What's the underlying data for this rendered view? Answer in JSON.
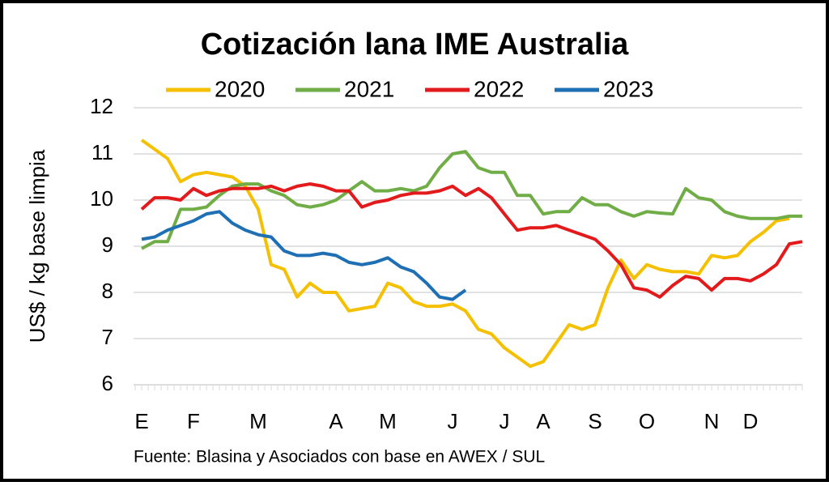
{
  "chart_data": {
    "type": "line",
    "title": "Cotización lana IME Australia",
    "y_label": "US$ / kg base limpia",
    "source": "Fuente: Blasina y Asociados con base en AWEX / SUL",
    "categories": [
      "E",
      null,
      null,
      null,
      "F",
      null,
      null,
      null,
      null,
      "M",
      null,
      null,
      null,
      null,
      null,
      "A",
      null,
      null,
      null,
      "M",
      null,
      null,
      null,
      null,
      "J",
      null,
      null,
      null,
      "J",
      null,
      null,
      "A",
      null,
      null,
      null,
      "S",
      null,
      null,
      null,
      "O",
      null,
      null,
      null,
      null,
      "N",
      null,
      null,
      "D",
      null,
      null,
      null,
      null
    ],
    "series": [
      {
        "name": "2020",
        "color": "#f5c000",
        "values": [
          11.3,
          11.1,
          10.9,
          10.4,
          10.55,
          10.6,
          10.55,
          10.5,
          10.3,
          9.8,
          8.6,
          8.5,
          7.9,
          8.2,
          8.0,
          8.0,
          7.6,
          7.65,
          7.7,
          8.2,
          8.1,
          7.8,
          7.7,
          7.7,
          7.75,
          7.6,
          7.2,
          7.1,
          6.8,
          6.6,
          6.4,
          6.5,
          6.9,
          7.3,
          7.2,
          7.3,
          8.1,
          8.7,
          8.3,
          8.6,
          8.5,
          8.45,
          8.45,
          8.4,
          8.8,
          8.75,
          8.8,
          9.1,
          9.3,
          9.55,
          9.6,
          null
        ]
      },
      {
        "name": "2021",
        "color": "#70ad47",
        "values": [
          8.95,
          9.1,
          9.1,
          9.8,
          9.8,
          9.85,
          10.1,
          10.3,
          10.35,
          10.35,
          10.2,
          10.1,
          9.9,
          9.85,
          9.9,
          10.0,
          10.2,
          10.4,
          10.2,
          10.2,
          10.25,
          10.2,
          10.3,
          10.7,
          11.0,
          11.05,
          10.7,
          10.6,
          10.6,
          10.1,
          10.1,
          9.7,
          9.75,
          9.75,
          10.05,
          9.9,
          9.9,
          9.75,
          9.65,
          9.75,
          9.72,
          9.7,
          10.25,
          10.05,
          10.0,
          9.75,
          9.65,
          9.6,
          9.6,
          9.6,
          9.65,
          9.65
        ]
      },
      {
        "name": "2022",
        "color": "#e31a1c",
        "values": [
          9.8,
          10.05,
          10.05,
          10.0,
          10.25,
          10.1,
          10.2,
          10.25,
          10.25,
          10.25,
          10.3,
          10.2,
          10.3,
          10.35,
          10.3,
          10.2,
          10.2,
          9.85,
          9.95,
          10.0,
          10.1,
          10.15,
          10.15,
          10.2,
          10.3,
          10.1,
          10.25,
          10.05,
          9.7,
          9.35,
          9.4,
          9.4,
          9.45,
          9.35,
          9.25,
          9.15,
          8.9,
          8.6,
          8.1,
          8.05,
          7.9,
          8.15,
          8.35,
          8.3,
          8.05,
          8.3,
          8.3,
          8.25,
          8.4,
          8.6,
          9.05,
          9.1
        ]
      },
      {
        "name": "2023",
        "color": "#1f6fb4",
        "values": [
          9.15,
          9.2,
          9.35,
          9.45,
          9.55,
          9.7,
          9.75,
          9.5,
          9.35,
          9.25,
          9.2,
          8.9,
          8.8,
          8.8,
          8.85,
          8.8,
          8.65,
          8.6,
          8.65,
          8.75,
          8.55,
          8.45,
          8.2,
          7.9,
          7.85,
          8.05,
          null,
          null,
          null,
          null,
          null,
          null,
          null,
          null,
          null,
          null,
          null,
          null,
          null,
          null,
          null,
          null,
          null,
          null,
          null,
          null,
          null,
          null,
          null,
          null,
          null,
          null
        ]
      }
    ],
    "ylim": [
      6,
      12
    ],
    "yticks": [
      6,
      7,
      8,
      9,
      10,
      11,
      12
    ],
    "grid": true
  }
}
